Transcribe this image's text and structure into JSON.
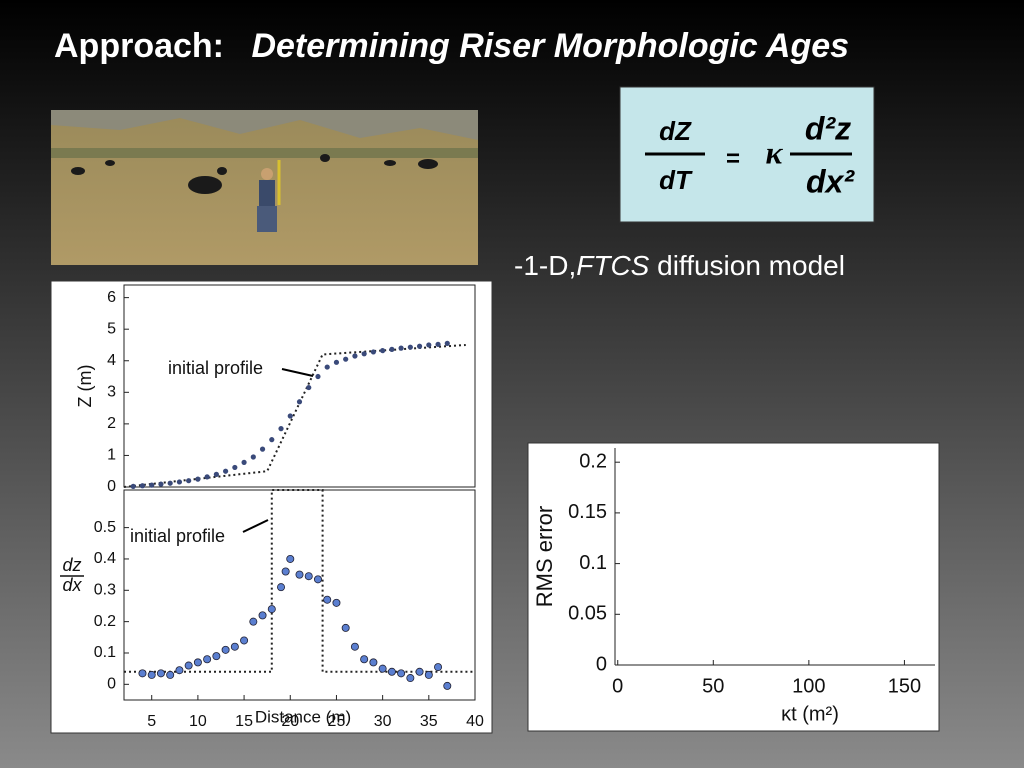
{
  "slide": {
    "title": {
      "lead": "Approach:",
      "main": "Determining Riser Morphologic Ages"
    },
    "equation": {
      "lhs_num": "dZ",
      "lhs_den": "dT",
      "equals": "=",
      "kappa": "κ",
      "rhs_num": "d²z",
      "rhs_den": "dx²"
    },
    "bullet": {
      "prefix": "-1-D,",
      "italic": "FTCS",
      "rest": " diffusion model"
    }
  },
  "chart_data": [
    {
      "type": "scatter",
      "ylabel": "Z (m)",
      "annotation": "initial profile",
      "color": "#3a4a7a",
      "xlim": [
        2,
        40
      ],
      "ylim": [
        0,
        6.4
      ],
      "yticks": [
        0,
        1,
        2,
        3,
        4,
        5,
        6
      ],
      "x": [
        3,
        4,
        5,
        6,
        7,
        8,
        9,
        10,
        11,
        12,
        13,
        14,
        15,
        16,
        17,
        18,
        19,
        20,
        21,
        22,
        23,
        24,
        25,
        26,
        27,
        28,
        29,
        30,
        31,
        32,
        33,
        34,
        35,
        36,
        37
      ],
      "values": [
        0.02,
        0.04,
        0.06,
        0.09,
        0.12,
        0.16,
        0.2,
        0.25,
        0.32,
        0.4,
        0.5,
        0.62,
        0.78,
        0.95,
        1.2,
        1.5,
        1.85,
        2.25,
        2.7,
        3.15,
        3.5,
        3.8,
        3.95,
        4.05,
        4.15,
        4.22,
        4.28,
        4.32,
        4.36,
        4.4,
        4.43,
        4.46,
        4.5,
        4.52,
        4.55
      ],
      "profile": {
        "x": [
          2,
          17.5,
          23.5,
          39
        ],
        "values": [
          0,
          0.5,
          4.2,
          4.5
        ]
      }
    },
    {
      "type": "scatter",
      "ylabel": {
        "numerator": "dz",
        "denominator": "dx"
      },
      "xlabel": "Distance (m)",
      "annotation": "initial profile",
      "color": "#5b7fd0",
      "xlim": [
        2,
        40
      ],
      "ylim": [
        -0.05,
        0.62
      ],
      "yticks": [
        0,
        0.1,
        0.2,
        0.3,
        0.4,
        0.5
      ],
      "xticks": [
        5,
        10,
        15,
        20,
        25,
        30,
        35,
        40
      ],
      "x": [
        4,
        5,
        6,
        7,
        8,
        9,
        10,
        11,
        12,
        13,
        14,
        15,
        16,
        17,
        18,
        19,
        19.5,
        20,
        21,
        22,
        23,
        24,
        25,
        26,
        27,
        28,
        29,
        30,
        31,
        32,
        33,
        34,
        35,
        36,
        37
      ],
      "values": [
        0.035,
        0.03,
        0.035,
        0.03,
        0.045,
        0.06,
        0.07,
        0.08,
        0.09,
        0.11,
        0.12,
        0.14,
        0.2,
        0.22,
        0.24,
        0.31,
        0.36,
        0.4,
        0.35,
        0.345,
        0.335,
        0.27,
        0.26,
        0.18,
        0.12,
        0.08,
        0.07,
        0.05,
        0.04,
        0.035,
        0.02,
        0.04,
        0.03,
        0.055,
        -0.005
      ],
      "profile": {
        "x": [
          2,
          18,
          18,
          23.5,
          23.5,
          40
        ],
        "values": [
          0.04,
          0.04,
          0.62,
          0.62,
          0.04,
          0.04
        ]
      }
    },
    {
      "type": "line",
      "ylabel": "RMS error",
      "xlabel": "κt (m²)",
      "xlim": [
        -3,
        166
      ],
      "ylim": [
        0,
        0.214
      ],
      "xticks": [
        0,
        50,
        100,
        150
      ],
      "yticks": [
        0,
        0.05,
        0.1,
        0.15,
        0.2
      ]
    }
  ]
}
